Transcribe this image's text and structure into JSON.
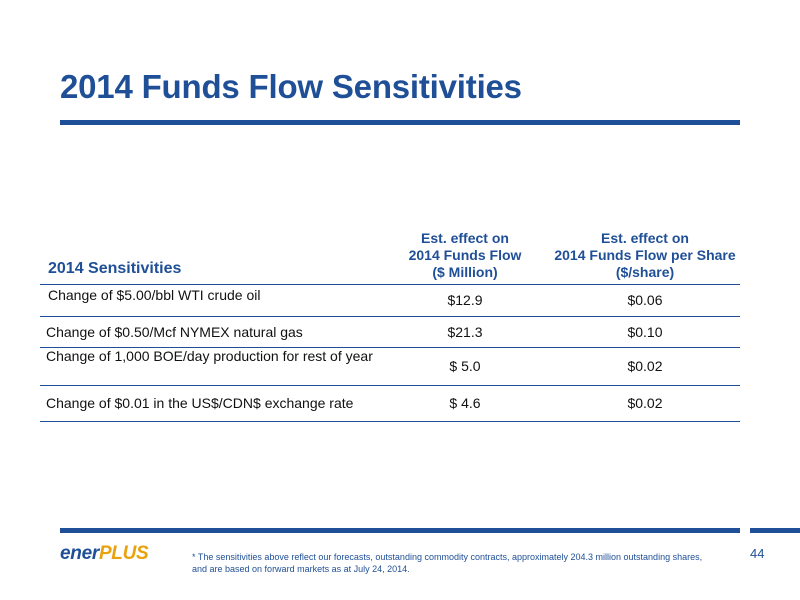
{
  "title": "2014 Funds Flow Sensitivities",
  "table": {
    "label_header": "2014 Sensitivities",
    "col1_header": [
      "Est. effect on",
      "2014 Funds Flow",
      "($ Million)"
    ],
    "col2_header": [
      "Est. effect on",
      "2014 Funds Flow per Share",
      "($/share)"
    ],
    "rows": [
      {
        "label": "Change of $5.00/bbl WTI crude oil",
        "funds_flow": "$12.9",
        "per_share": "$0.06"
      },
      {
        "label": "Change of $0.50/Mcf NYMEX natural gas",
        "funds_flow": "$21.3",
        "per_share": "$0.10"
      },
      {
        "label": "Change of 1,000 BOE/day production for rest of year",
        "funds_flow": "$ 5.0",
        "per_share": "$0.02"
      },
      {
        "label": "Change of $0.01 in the US$/CDN$ exchange rate",
        "funds_flow": "$ 4.6",
        "per_share": "$0.02"
      }
    ]
  },
  "footer": {
    "logo_part1": "ener",
    "logo_part2": "PLUS",
    "footnote": "* The sensitivities above reflect our forecasts, outstanding commodity contracts, approximately 204.3 million outstanding shares, and are based on forward markets as at July 24, 2014.",
    "page_number": "44"
  },
  "colors": {
    "brand_blue": "#1f4f96",
    "brand_gold": "#e8a20c"
  }
}
